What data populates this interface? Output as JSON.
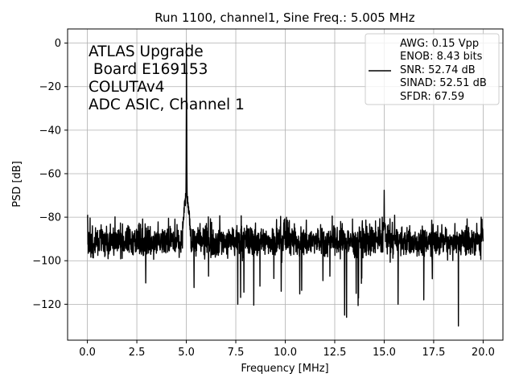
{
  "chart_data": {
    "type": "line",
    "title": "Run 1100, channel1, Sine Freq.: 5.005 MHz",
    "xlabel": "Frequency [MHz]",
    "ylabel": "PSD [dB]",
    "xlim": [
      -1.0,
      21.0
    ],
    "ylim": [
      -136.5,
      6.5
    ],
    "x_ticks": [
      0.0,
      2.5,
      5.0,
      7.5,
      10.0,
      12.5,
      15.0,
      17.5,
      20.0
    ],
    "x_tick_labels": [
      "0.0",
      "2.5",
      "5.0",
      "7.5",
      "10.0",
      "12.5",
      "15.0",
      "17.5",
      "20.0"
    ],
    "y_ticks": [
      0,
      -20,
      -40,
      -60,
      -80,
      -100,
      -120
    ],
    "y_tick_labels": [
      "0",
      "−20",
      "−40",
      "−60",
      "−80",
      "−100",
      "−120"
    ],
    "grid": true,
    "legend_position": "top-right",
    "line_color": "#000000",
    "annotation_lines": [
      "ATLAS Upgrade",
      " Board E169153",
      "COLUTAv4",
      "ADC ASIC, Channel 1"
    ],
    "legend_lines": [
      "AWG: 0.15 Vpp",
      "ENOB: 8.43 bits",
      "SNR: 52.74 dB",
      "SINAD: 52.51 dB",
      "SFDR: 67.59"
    ],
    "series": [
      {
        "fundamental_freq": 5.005,
        "fundamental_peak_db": 0,
        "harmonic_freq": 15.0,
        "harmonic_peak_db": -67.6,
        "noise_floor_db": -91,
        "noise_min_db": -130,
        "noise_max_db": -79,
        "notable_dips": [
          {
            "x": 13.0,
            "y": -125
          },
          {
            "x": 13.1,
            "y": -126
          },
          {
            "x": 7.6,
            "y": -120
          },
          {
            "x": 18.75,
            "y": -130
          },
          {
            "x": 17.0,
            "y": -118
          },
          {
            "x": 15.7,
            "y": -120
          }
        ],
        "notable_spikes": [
          {
            "x": 0.0,
            "y": -79
          },
          {
            "x": 4.85,
            "y": -80
          },
          {
            "x": 12.8,
            "y": -82
          },
          {
            "x": 14.9,
            "y": -80
          },
          {
            "x": 19.9,
            "y": -80
          }
        ]
      }
    ]
  }
}
